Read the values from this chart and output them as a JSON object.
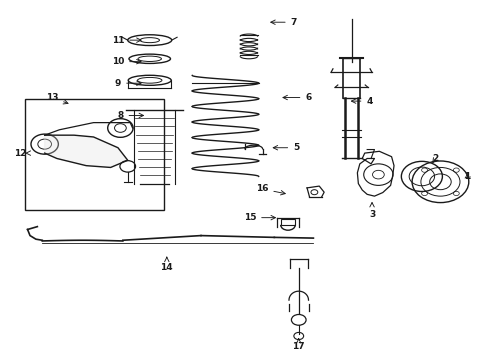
{
  "bg_color": "#ffffff",
  "line_color": "#1a1a1a",
  "fig_width": 4.9,
  "fig_height": 3.6,
  "dpi": 100,
  "label_positions": {
    "1": [
      0.945,
      0.5,
      0.01,
      0.01
    ],
    "2": [
      0.88,
      0.54,
      0.01,
      0.02
    ],
    "3": [
      0.76,
      0.44,
      0.0,
      -0.035
    ],
    "4": [
      0.71,
      0.72,
      0.045,
      0.0
    ],
    "5": [
      0.55,
      0.59,
      0.055,
      0.0
    ],
    "6": [
      0.57,
      0.73,
      0.06,
      0.0
    ],
    "7": [
      0.545,
      0.94,
      0.055,
      0.0
    ],
    "8": [
      0.3,
      0.68,
      -0.055,
      0.0
    ],
    "9": [
      0.295,
      0.77,
      -0.055,
      0.0
    ],
    "10": [
      0.295,
      0.83,
      -0.055,
      0.0
    ],
    "11": [
      0.295,
      0.89,
      -0.055,
      0.0
    ],
    "12": [
      0.04,
      0.575,
      0.0,
      0.0
    ],
    "13": [
      0.145,
      0.71,
      -0.04,
      0.02
    ],
    "14": [
      0.34,
      0.295,
      0.0,
      -0.04
    ],
    "15": [
      0.57,
      0.395,
      -0.06,
      0.0
    ],
    "16": [
      0.59,
      0.46,
      -0.055,
      0.015
    ],
    "17": [
      0.61,
      0.06,
      0.0,
      -0.025
    ]
  }
}
